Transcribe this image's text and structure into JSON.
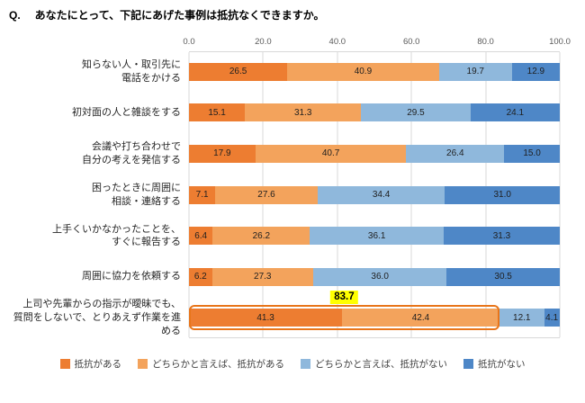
{
  "title_prefix": "Q.",
  "title_text": "あなたにとって、下記にあげた事例は抵抗なくできますか。",
  "chart_data": {
    "type": "bar",
    "stacked": true,
    "orientation": "horizontal",
    "x_axis": {
      "min": 0,
      "max": 100,
      "ticks": [
        "0.0",
        "20.0",
        "40.0",
        "60.0",
        "80.0",
        "100.0"
      ]
    },
    "grid": true,
    "legend_position": "bottom",
    "categories": [
      [
        "知らない人・取引先に",
        "電話をかける"
      ],
      [
        "初対面の人と雑談をする"
      ],
      [
        "会議や打ち合わせで",
        "自分の考えを発信する"
      ],
      [
        "困ったときに周囲に",
        "相談・連絡する"
      ],
      [
        "上手くいかなかったことを、",
        "すぐに報告する"
      ],
      [
        "周囲に協力を依頼する"
      ],
      [
        "上司や先輩からの指示が曖昧でも、",
        "質問をしないで、とりあえず作業を進める"
      ]
    ],
    "series": [
      {
        "name": "抵抗がある",
        "color": "#ED7D31",
        "values": [
          26.5,
          15.1,
          17.9,
          7.1,
          6.4,
          6.2,
          41.3
        ]
      },
      {
        "name": "どちらかと言えば、抵抗がある",
        "color": "#F3A35C",
        "values": [
          40.9,
          31.3,
          40.7,
          27.6,
          26.2,
          27.3,
          42.4
        ]
      },
      {
        "name": "どちらかと言えば、抵抗がない",
        "color": "#8FB8DC",
        "values": [
          19.7,
          29.5,
          26.4,
          34.4,
          36.1,
          36.0,
          12.1
        ]
      },
      {
        "name": "抵抗がない",
        "color": "#4E87C7",
        "values": [
          12.9,
          24.1,
          15.0,
          31.0,
          31.3,
          30.5,
          4.1
        ]
      }
    ],
    "annotation": {
      "label": "83.7",
      "row_index": 6,
      "span_from": 0,
      "span_to": 83.7,
      "highlight_color": "#FFFF00",
      "outline_color": "#E8751A"
    }
  }
}
